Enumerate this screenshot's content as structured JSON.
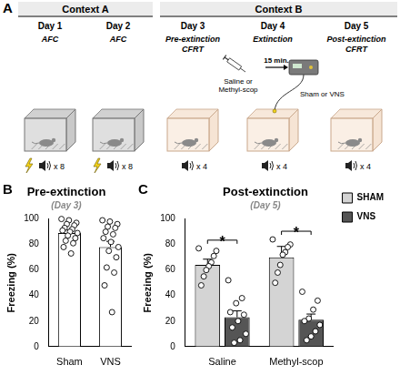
{
  "panel_A": {
    "panel_label": "A",
    "contexts": [
      {
        "label": "Context A",
        "color": "#c9c9c9",
        "days": [
          {
            "day": "Day 1",
            "phase": "AFC",
            "tones": "x 8",
            "shock": true
          },
          {
            "day": "Day 2",
            "phase": "AFC",
            "tones": "x 8",
            "shock": true
          }
        ]
      },
      {
        "label": "Context B",
        "color": "#f6e4d4",
        "days": [
          {
            "day": "Day 3",
            "phase": "Pre-extinction CFRT",
            "tones": "x 4",
            "shock": false
          },
          {
            "day": "Day 4",
            "phase": "Extinction",
            "tones": "x 4",
            "shock": false,
            "injection": "Saline or Methyl-scop",
            "delay": "15 min.",
            "stimulation": "Sham or VNS"
          },
          {
            "day": "Day 5",
            "phase": "Post-extinction CFRT",
            "tones": "x 4",
            "shock": false
          }
        ]
      }
    ]
  },
  "chart_data": [
    {
      "panel_label": "B",
      "type": "bar",
      "title": "Pre-extinction",
      "subtitle": "(Day 3)",
      "y_label": "Freezing (%)",
      "categories": [
        "Sham",
        "VNS"
      ],
      "values": [
        89,
        78
      ],
      "errors": [
        2.5,
        4.5
      ],
      "points": [
        [
          100,
          99,
          97,
          96,
          95,
          93,
          92,
          91,
          90,
          89,
          87,
          85,
          83,
          81,
          78,
          73
        ],
        [
          99,
          98,
          96,
          94,
          93,
          90,
          88,
          85,
          82,
          78,
          75,
          70,
          62,
          58,
          48,
          27
        ]
      ],
      "color": "#ffffff",
      "ylim": [
        0,
        100
      ],
      "yticks": [
        0,
        20,
        40,
        60,
        80,
        100
      ],
      "grid": false
    },
    {
      "panel_label": "C",
      "type": "bar",
      "title": "Post-extinction",
      "subtitle": "(Day 5)",
      "y_label": "Freezing (%)",
      "categories": [
        "Saline",
        "Methyl-scop"
      ],
      "series": [
        {
          "name": "SHAM",
          "color": "#d4d4d4",
          "values": [
            64,
            70
          ],
          "errors": [
            4.5,
            8.5
          ],
          "points": [
            [
              77,
              75,
              71,
              66,
              63,
              60,
              55,
              48
            ],
            [
              84,
              80,
              78,
              74,
              72,
              64,
              58,
              50
            ]
          ]
        },
        {
          "name": "VNS",
          "color": "#555555",
          "values": [
            23,
            21
          ],
          "errors": [
            5,
            4.5
          ],
          "points": [
            [
              52,
              38,
              34,
              27,
              25,
              20,
              15,
              10,
              5,
              3
            ],
            [
              43,
              36,
              29,
              22,
              20,
              17,
              12,
              8,
              5
            ]
          ]
        }
      ],
      "annotations": [
        {
          "text": "*",
          "category": "Saline"
        },
        {
          "text": "*",
          "category": "Methyl-scop"
        }
      ],
      "legend": "right",
      "ylim": [
        0,
        100
      ],
      "yticks": [
        0,
        20,
        40,
        60,
        80,
        100
      ],
      "grid": false
    }
  ]
}
